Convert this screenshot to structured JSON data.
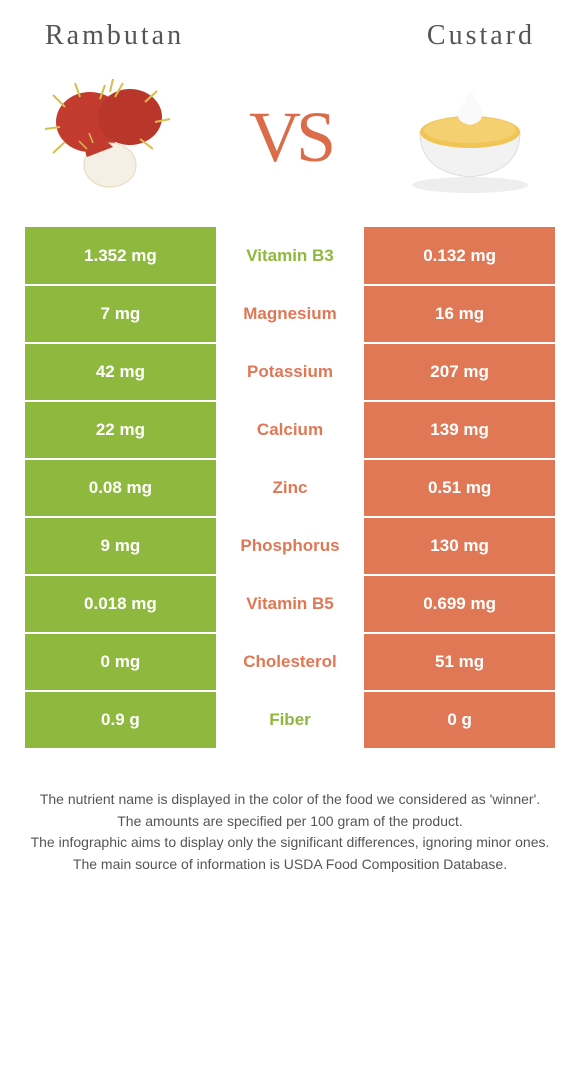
{
  "header": {
    "left_title": "Rambutan",
    "right_title": "Custard"
  },
  "vs_text": "VS",
  "colors": {
    "left_bg": "#8fb93e",
    "right_bg": "#e07856",
    "left_text": "#8fb93e",
    "right_text": "#e07856"
  },
  "nutrients": [
    {
      "label": "Vitamin B3",
      "left": "1.352 mg",
      "right": "0.132 mg",
      "winner": "left"
    },
    {
      "label": "Magnesium",
      "left": "7 mg",
      "right": "16 mg",
      "winner": "right"
    },
    {
      "label": "Potassium",
      "left": "42 mg",
      "right": "207 mg",
      "winner": "right"
    },
    {
      "label": "Calcium",
      "left": "22 mg",
      "right": "139 mg",
      "winner": "right"
    },
    {
      "label": "Zinc",
      "left": "0.08 mg",
      "right": "0.51 mg",
      "winner": "right"
    },
    {
      "label": "Phosphorus",
      "left": "9 mg",
      "right": "130 mg",
      "winner": "right"
    },
    {
      "label": "Vitamin B5",
      "left": "0.018 mg",
      "right": "0.699 mg",
      "winner": "right"
    },
    {
      "label": "Cholesterol",
      "left": "0 mg",
      "right": "51 mg",
      "winner": "right"
    },
    {
      "label": "Fiber",
      "left": "0.9 g",
      "right": "0 g",
      "winner": "left"
    }
  ],
  "footer": {
    "line1": "The nutrient name is displayed in the color of the food we considered as 'winner'.",
    "line2": "The amounts are specified per 100 gram of the product.",
    "line3": "The infographic aims to display only the significant differences, ignoring minor ones.",
    "line4": "The main source of information is USDA Food Composition Database."
  }
}
